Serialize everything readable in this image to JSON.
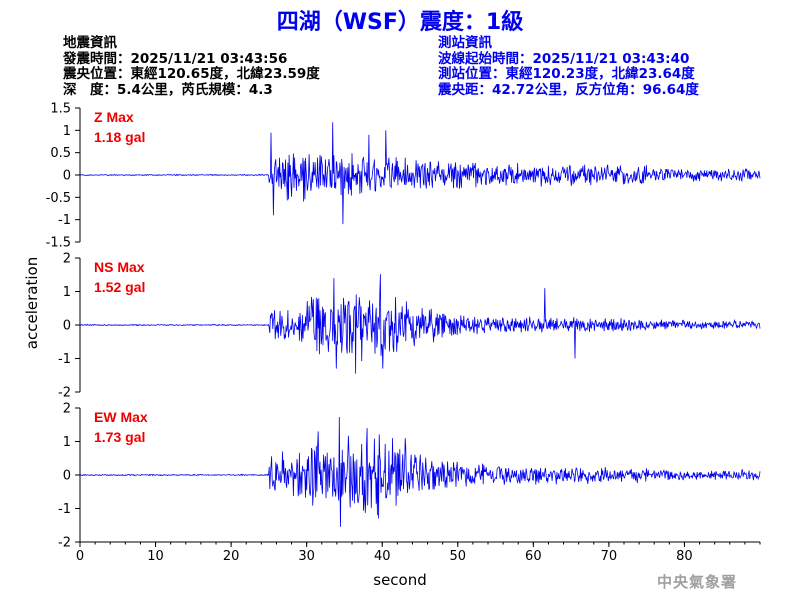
{
  "title": "四湖（WSF）震度：1級",
  "quake_info": {
    "heading": "地震資訊",
    "origin_time": "發震時間：2025/11/21 03:43:56",
    "epicenter": "震央位置：東經120.65度，北緯23.59度",
    "depth_magnitude": "深　度：5.4公里，芮氏規模：4.3"
  },
  "station_info": {
    "heading": "測站資訊",
    "wave_start": "波線起始時間：2025/11/21 03:43:40",
    "location": "測站位置：東經120.23度，北緯23.64度",
    "distance_azimuth": "震央距：42.72公里，反方位角：96.64度"
  },
  "agency": "中央氣象署",
  "colors": {
    "trace": "#0000ee",
    "max_label": "#ee0000",
    "title": "#0000ee"
  },
  "chart_data": {
    "type": "line",
    "xlabel": "second",
    "ylabel": "acceleration",
    "xlim": [
      0,
      90
    ],
    "xticks": [
      0,
      10,
      20,
      30,
      40,
      50,
      60,
      70,
      80
    ],
    "duration": 90,
    "onset": 25,
    "series": [
      {
        "name": "Z",
        "max_label": "Z Max",
        "max_value": "1.18 gal",
        "ylim": [
          -1.5,
          1.5
        ],
        "yticks": [
          -1.5,
          -1,
          -0.5,
          0,
          0.5,
          1,
          1.5
        ],
        "ytick_labels": [
          "-1.5",
          "-1",
          "-0.5",
          "0",
          "0.5",
          "1",
          "1.5"
        ],
        "peaks": [
          [
            25.3,
            0.95
          ],
          [
            25.6,
            -0.9
          ],
          [
            33.4,
            1.18
          ],
          [
            34.8,
            -1.1
          ],
          [
            38.2,
            0.9
          ],
          [
            40.5,
            1.0
          ]
        ]
      },
      {
        "name": "NS",
        "max_label": "NS Max",
        "max_value": "1.52 gal",
        "ylim": [
          -2,
          2
        ],
        "yticks": [
          -2,
          -1,
          0,
          1,
          2
        ],
        "ytick_labels": [
          "-2",
          "-1",
          "0",
          "1",
          "2"
        ],
        "peaks": [
          [
            33.6,
            1.4
          ],
          [
            33.9,
            -1.3
          ],
          [
            36.5,
            -1.45
          ],
          [
            39.8,
            1.52
          ],
          [
            40.1,
            -1.3
          ],
          [
            61.5,
            1.1
          ],
          [
            65.5,
            -1.0
          ]
        ]
      },
      {
        "name": "EW",
        "max_label": "EW Max",
        "max_value": "1.73 gal",
        "ylim": [
          -2,
          2
        ],
        "yticks": [
          -2,
          -1,
          0,
          1,
          2
        ],
        "ytick_labels": [
          "-2",
          "-1",
          "0",
          "1",
          "2"
        ],
        "peaks": [
          [
            31.5,
            1.3
          ],
          [
            34.3,
            1.73
          ],
          [
            34.5,
            -1.55
          ],
          [
            38.0,
            1.4
          ],
          [
            39.5,
            -1.3
          ],
          [
            43.0,
            1.1
          ]
        ]
      }
    ]
  }
}
